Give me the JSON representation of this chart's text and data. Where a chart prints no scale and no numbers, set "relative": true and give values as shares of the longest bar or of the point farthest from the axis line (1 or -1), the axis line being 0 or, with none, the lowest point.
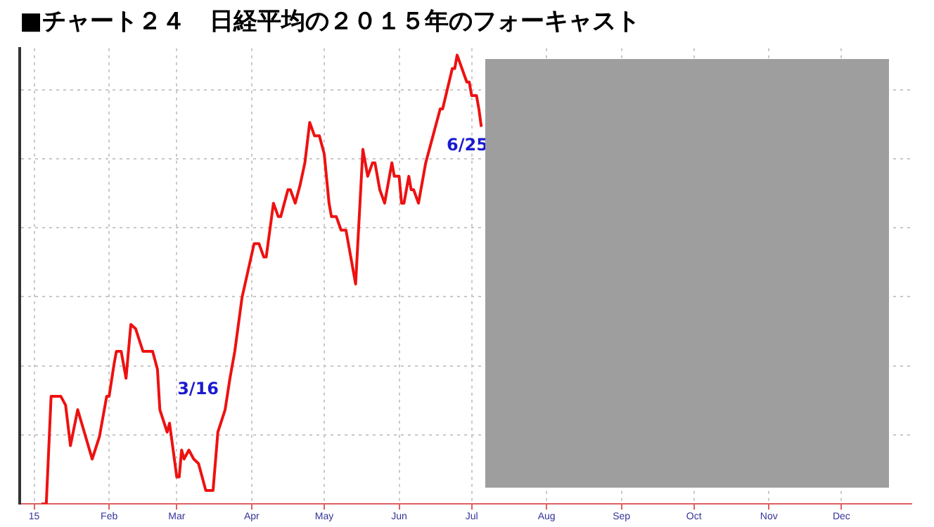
{
  "chart_data": {
    "type": "line",
    "title": "■チャート２４　日経平均の２０１５年のフォーキャスト",
    "relative": true,
    "grid": true,
    "legend": false,
    "marker": "none",
    "line_style": "solid",
    "xlim": [
      "2014-12-26",
      "2015-12-30"
    ],
    "xticks": [
      {
        "value": "2015-01-01",
        "label": "15"
      },
      {
        "value": "2015-02-01",
        "label": "Feb"
      },
      {
        "value": "2015-03-01",
        "label": "Mar"
      },
      {
        "value": "2015-04-01",
        "label": "Apr"
      },
      {
        "value": "2015-05-01",
        "label": "May"
      },
      {
        "value": "2015-06-01",
        "label": "Jun"
      },
      {
        "value": "2015-07-01",
        "label": "Jul"
      },
      {
        "value": "2015-08-01",
        "label": "Aug"
      },
      {
        "value": "2015-09-01",
        "label": "Sep"
      },
      {
        "value": "2015-10-01",
        "label": "Oct"
      },
      {
        "value": "2015-11-01",
        "label": "Nov"
      },
      {
        "value": "2015-12-01",
        "label": "Dec"
      }
    ],
    "annotations": [
      "3/16",
      "6/25"
    ],
    "series": [
      {
        "color": "#ee1111",
        "x": [
          "2015-01-04",
          "2015-01-06",
          "2015-01-08",
          "2015-01-12",
          "2015-01-14",
          "2015-01-16",
          "2015-01-19",
          "2015-01-25",
          "2015-01-28",
          "2015-01-31",
          "2015-02-01",
          "2015-02-03",
          "2015-02-04",
          "2015-02-06",
          "2015-02-08",
          "2015-02-10",
          "2015-02-12",
          "2015-02-15",
          "2015-02-19",
          "2015-02-21",
          "2015-02-22",
          "2015-02-25",
          "2015-02-26",
          "2015-03-01",
          "2015-03-02",
          "2015-03-03",
          "2015-03-04",
          "2015-03-06",
          "2015-03-08",
          "2015-03-10",
          "2015-03-13",
          "2015-03-16",
          "2015-03-18",
          "2015-03-21",
          "2015-03-23",
          "2015-03-25",
          "2015-03-28",
          "2015-04-02",
          "2015-04-04",
          "2015-04-06",
          "2015-04-07",
          "2015-04-10",
          "2015-04-12",
          "2015-04-13",
          "2015-04-16",
          "2015-04-17",
          "2015-04-19",
          "2015-04-21",
          "2015-04-23",
          "2015-04-25",
          "2015-04-27",
          "2015-04-29",
          "2015-05-01",
          "2015-05-03",
          "2015-05-04",
          "2015-05-06",
          "2015-05-08",
          "2015-05-10",
          "2015-05-12",
          "2015-05-14",
          "2015-05-17",
          "2015-05-19",
          "2015-05-21",
          "2015-05-22",
          "2015-05-24",
          "2015-05-26",
          "2015-05-29",
          "2015-05-30",
          "2015-06-01",
          "2015-06-02",
          "2015-06-03",
          "2015-06-05",
          "2015-06-06",
          "2015-06-07",
          "2015-06-09",
          "2015-06-12",
          "2015-06-15",
          "2015-06-18",
          "2015-06-19",
          "2015-06-23",
          "2015-06-24",
          "2015-06-25",
          "2015-06-29",
          "2015-06-30",
          "2015-07-01",
          "2015-07-03",
          "2015-07-04",
          "2015-07-05"
        ],
        "values": [
          0.0,
          0.0,
          0.24,
          0.24,
          0.22,
          0.13,
          0.21,
          0.1,
          0.15,
          0.24,
          0.24,
          0.31,
          0.34,
          0.34,
          0.28,
          0.4,
          0.39,
          0.34,
          0.34,
          0.3,
          0.21,
          0.16,
          0.18,
          0.06,
          0.06,
          0.12,
          0.1,
          0.12,
          0.1,
          0.09,
          0.03,
          0.03,
          0.16,
          0.21,
          0.28,
          0.34,
          0.46,
          0.58,
          0.58,
          0.55,
          0.55,
          0.67,
          0.64,
          0.64,
          0.7,
          0.7,
          0.67,
          0.71,
          0.76,
          0.85,
          0.82,
          0.82,
          0.78,
          0.67,
          0.64,
          0.64,
          0.61,
          0.61,
          0.55,
          0.49,
          0.79,
          0.73,
          0.76,
          0.76,
          0.7,
          0.67,
          0.76,
          0.73,
          0.73,
          0.67,
          0.67,
          0.73,
          0.7,
          0.7,
          0.67,
          0.76,
          0.82,
          0.88,
          0.88,
          0.97,
          0.97,
          1.0,
          0.94,
          0.94,
          0.91,
          0.91,
          0.88,
          0.84
        ]
      }
    ]
  }
}
